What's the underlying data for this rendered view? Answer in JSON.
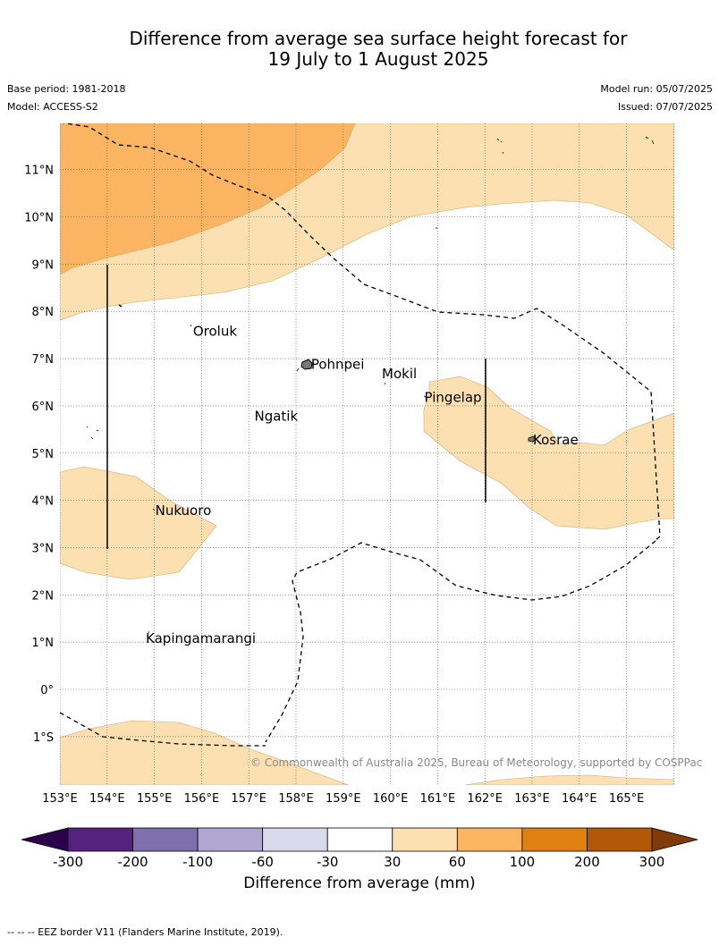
{
  "header": {
    "title_line1": "Difference from average sea surface height forecast for",
    "title_line2": "19 July to 1 August 2025",
    "base_period": "Base period: 1981-2018",
    "model": "Model: ACCESS-S2",
    "model_run": "Model run: 05/07/2025",
    "issued": "Issued: 07/07/2025"
  },
  "map": {
    "lon_labels": [
      "153°E",
      "154°E",
      "155°E",
      "156°E",
      "157°E",
      "158°E",
      "159°E",
      "160°E",
      "161°E",
      "162°E",
      "163°E",
      "164°E",
      "165°E"
    ],
    "lat_labels": [
      "11°N",
      "10°N",
      "9°N",
      "8°N",
      "7°N",
      "6°N",
      "5°N",
      "4°N",
      "3°N",
      "2°N",
      "1°N",
      "0°",
      "1°S"
    ],
    "places": [
      {
        "name": "Oroluk",
        "lon": 155.8,
        "lat": 7.6
      },
      {
        "name": "Pohnpei",
        "lon": 158.3,
        "lat": 6.9
      },
      {
        "name": "Mokil",
        "lon": 159.8,
        "lat": 6.7
      },
      {
        "name": "Pingelap",
        "lon": 160.7,
        "lat": 6.2
      },
      {
        "name": "Ngatik",
        "lon": 157.1,
        "lat": 5.8
      },
      {
        "name": "Kosrae",
        "lon": 163.0,
        "lat": 5.3
      },
      {
        "name": "Nukuoro",
        "lon": 155.0,
        "lat": 3.8
      },
      {
        "name": "Kapingamarangi",
        "lon": 154.8,
        "lat": 1.1
      }
    ],
    "colors": {
      "band_30_60": "#fde0b2",
      "band_60_100": "#fbb562",
      "outline": "#d4a56a",
      "grid": "#555555"
    },
    "credit": "© Commonwealth of Australia 2025, Bureau of Meteorology, supported by COSPPac"
  },
  "colorbar": {
    "ticks": [
      "-300",
      "-200",
      "-100",
      "-60",
      "-30",
      "30",
      "60",
      "100",
      "200",
      "300"
    ],
    "colors": [
      "#56227f",
      "#7f6fad",
      "#b0a6cf",
      "#d9d9ec",
      "#ffffff",
      "#fde0b2",
      "#fbb562",
      "#e08213",
      "#b35806"
    ],
    "low_extend_color": "#2d004b",
    "high_extend_color": "#7f3b08",
    "label": "Difference from average (mm)"
  },
  "footer": {
    "legend_text": "--  --  -- EEZ border V11 (Flanders Marine Institute, 2019)."
  }
}
